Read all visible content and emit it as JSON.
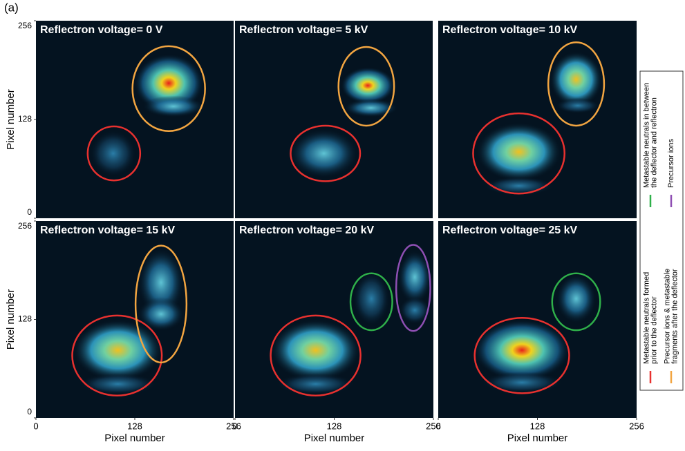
{
  "figure_label": "(a)",
  "xlim": [
    0,
    256
  ],
  "ylim": [
    0,
    256
  ],
  "xticks": [
    0,
    128,
    256
  ],
  "yticks": [
    0,
    128,
    256
  ],
  "xlabel": "Pixel number",
  "ylabel": "Pixel number",
  "panels": [
    {
      "title": "Reflectron voltage= 0 V"
    },
    {
      "title": "Reflectron voltage= 5 kV"
    },
    {
      "title": "Reflectron voltage= 10 kV"
    },
    {
      "title": "Reflectron voltage= 15 kV"
    },
    {
      "title": "Reflectron voltage= 20 kV"
    },
    {
      "title": "Reflectron voltage= 25 kV"
    }
  ],
  "legend": [
    {
      "lines": [
        "Metastable neutrals in between",
        "the deflector and reflectron"
      ],
      "color": "#2fb04a"
    },
    {
      "lines": [
        "Precursor ions"
      ],
      "color": "#8e4fb3"
    },
    {
      "lines": [
        "Metastable neutrals formed",
        "prior to the deflector"
      ],
      "color": "#e8312f"
    },
    {
      "lines": [
        "Precursor ions & metastable",
        "fragments after the deflector"
      ],
      "color": "#f2a541"
    }
  ]
}
